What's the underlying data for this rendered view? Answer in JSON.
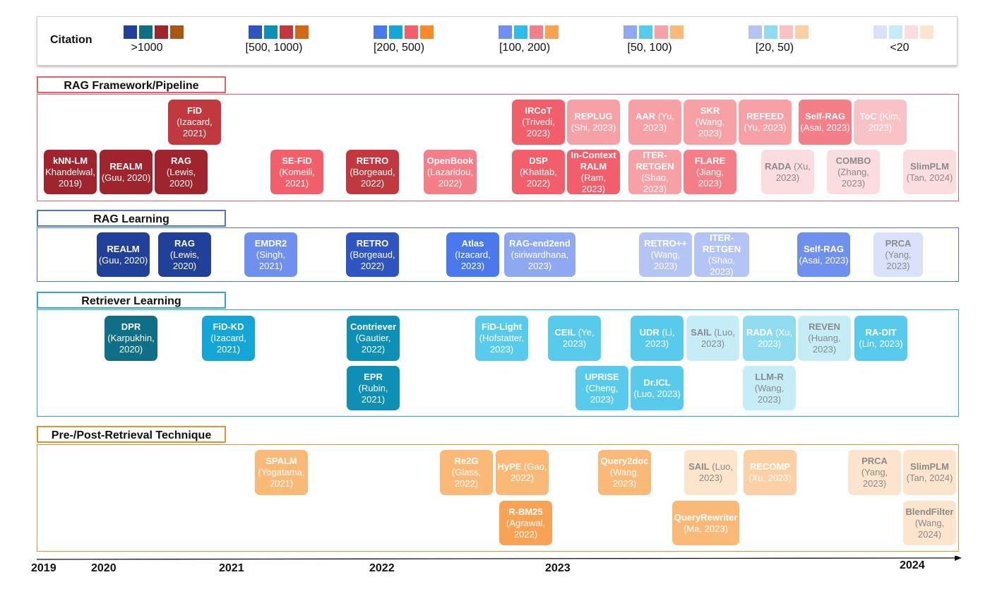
{
  "legend": {
    "title": "Citation",
    "groups": [
      {
        "label": ">1000",
        "colors": [
          "#21409a",
          "#0e6f86",
          "#a0242d",
          "#a85812"
        ]
      },
      {
        "label": "[500, 1000)",
        "colors": [
          "#2e55c1",
          "#0e8fb5",
          "#c2383f",
          "#d06a16"
        ]
      },
      {
        "label": "[200, 500)",
        "colors": [
          "#4a78ed",
          "#13a6d6",
          "#f25e6a",
          "#f98a28"
        ]
      },
      {
        "label": "[100, 200)",
        "colors": [
          "#6f90ef",
          "#2fbce6",
          "#f47f88",
          "#f9a254"
        ]
      },
      {
        "label": "[50, 100)",
        "colors": [
          "#8ea8f2",
          "#58cbec",
          "#f7a0a6",
          "#fbb978"
        ]
      },
      {
        "label": "[20, 50)",
        "colors": [
          "#b3c4f5",
          "#8fdcf1",
          "#f9c2c6",
          "#fcd0a5"
        ]
      },
      {
        "label": "<20",
        "colors": [
          "#d9e2fa",
          "#c5ecf7",
          "#fbdcdf",
          "#fde5cd"
        ]
      }
    ]
  },
  "sections": [
    {
      "title": "RAG Framework/Pipeline",
      "color": "#e8606a",
      "cards": [
        {
          "name": "FiD",
          "rest": "(Izacard, 2021)",
          "tier": 1
        },
        {
          "name": "kNN-LM",
          "rest": "Khandelwal, 2019)",
          "tier": 0
        },
        {
          "name": "REALM",
          "rest": "(Guu, 2020)",
          "tier": 0
        },
        {
          "name": "RAG",
          "rest": "(Lewis, 2020)",
          "tier": 0
        },
        {
          "name": "SE-FiD",
          "rest": "(Komeili, 2021)",
          "tier": 2
        },
        {
          "name": "RETRO",
          "rest": "(Borgeaud, 2022)",
          "tier": 1
        },
        {
          "name": "OpenBook",
          "rest": "(Lazaridou, 2022)",
          "tier": 3
        },
        {
          "name": "IRCoT",
          "rest": "(Trivedi, 2023)",
          "tier": 2
        },
        {
          "name": "REPLUG",
          "rest": "(Shi, 2023)",
          "tier": 4
        },
        {
          "name": "DSP",
          "rest": "(Khattab, 2022)",
          "tier": 2
        },
        {
          "name": "In-Context RALM",
          "rest": "(Ram, 2023)",
          "tier": 2
        },
        {
          "name": "AAR",
          "rest": "(Yu, 2023)",
          "tier": 4
        },
        {
          "name": "SKR",
          "rest": "(Wang, 2023)",
          "tier": 4
        },
        {
          "name": "REFEED",
          "rest": "(Yu, 2023)",
          "tier": 4
        },
        {
          "name": "Self-RAG",
          "rest": "(Asai, 2023)",
          "tier": 3
        },
        {
          "name": "ToC",
          "rest": "(Kim, 2023)",
          "tier": 5
        },
        {
          "name": "ITER-RETGEN",
          "rest": "(Shao, 2023)",
          "tier": 4
        },
        {
          "name": "FLARE",
          "rest": "(Jiang, 2023)",
          "tier": 3
        },
        {
          "name": "RADA",
          "rest": "(Xu, 2023)",
          "tier": 6
        },
        {
          "name": "COMBO",
          "rest": "(Zhang, 2023)",
          "tier": 6
        },
        {
          "name": "SlimPLM",
          "rest": "(Tan, 2024)",
          "tier": 6
        }
      ]
    },
    {
      "title": "RAG Learning",
      "color": "#4a76d4",
      "cards": [
        {
          "name": "REALM",
          "rest": "(Guu, 2020)",
          "tier": 0
        },
        {
          "name": "RAG",
          "rest": "(Lewis, 2020)",
          "tier": 0
        },
        {
          "name": "EMDR2",
          "rest": "(Singh, 2021)",
          "tier": 3
        },
        {
          "name": "RETRO",
          "rest": "(Borgeaud, 2022)",
          "tier": 1
        },
        {
          "name": "Atlas",
          "rest": "(Izacard, 2023)",
          "tier": 2
        },
        {
          "name": "RAG-end2end",
          "rest": "(siriwardhana, 2023)",
          "tier": 4
        },
        {
          "name": "RETRO++",
          "rest": "(Wang, 2023)",
          "tier": 5
        },
        {
          "name": "ITER-RETGEN",
          "rest": "(Shao, 2023)",
          "tier": 5
        },
        {
          "name": "Self-RAG",
          "rest": "(Asai, 2023)",
          "tier": 3
        },
        {
          "name": "PRCA",
          "rest": "(Yang, 2023)",
          "tier": 6
        }
      ]
    },
    {
      "title": "Retriever Learning",
      "color": "#2ba8d9",
      "cards": [
        {
          "name": "DPR",
          "rest": "(Karpukhin, 2020)",
          "tier": 0
        },
        {
          "name": "FiD-KD",
          "rest": "(Izacard, 2021)",
          "tier": 2
        },
        {
          "name": "Contriever",
          "rest": "(Gautier, 2022)",
          "tier": 1
        },
        {
          "name": "EPR",
          "rest": "(Rubin, 2021)",
          "tier": 1
        },
        {
          "name": "FiD-Light",
          "rest": "(Hofstatter, 2023)",
          "tier": 4
        },
        {
          "name": "CEIL",
          "rest": "(Ye, 2023)",
          "tier": 4
        },
        {
          "name": "UPRISE",
          "rest": "(Cheng, 2023)",
          "tier": 4
        },
        {
          "name": "UDR",
          "rest": "(Li, 2023)",
          "tier": 4
        },
        {
          "name": "Dr.ICL",
          "rest": "(Luo, 2023)",
          "tier": 4
        },
        {
          "name": "SAIL",
          "rest": "(Luo, 2023)",
          "tier": 6
        },
        {
          "name": "RADA",
          "rest": "(Xu, 2023)",
          "tier": 5
        },
        {
          "name": "LLM-R",
          "rest": "(Wang, 2023)",
          "tier": 6
        },
        {
          "name": "REVEN",
          "rest": "(Huang, 2023)",
          "tier": 6
        },
        {
          "name": "RA-DIT",
          "rest": "(Lin, 2023)",
          "tier": 4
        }
      ]
    },
    {
      "title": "Pre-/Post-Retrieval Technique",
      "color": "#e8902e",
      "cards": [
        {
          "name": "SPALM",
          "rest": "(Yogatama, 2021)",
          "tier": 4
        },
        {
          "name": "Re2G",
          "rest": "(Glass, 2022)",
          "tier": 4
        },
        {
          "name": "HyPE",
          "rest": "(Gao, 2022)",
          "tier": 4
        },
        {
          "name": "R-BM25",
          "rest": "(Agrawal, 2022)",
          "tier": 3
        },
        {
          "name": "Query2doc",
          "rest": "(Wang, 2023)",
          "tier": 4
        },
        {
          "name": "SAIL",
          "rest": "(Luo, 2023)",
          "tier": 6
        },
        {
          "name": "QueryRewriter",
          "rest": "(Ma, 2023)",
          "tier": 4
        },
        {
          "name": "RECOMP",
          "rest": "(Xu, 2023)",
          "tier": 5
        },
        {
          "name": "PRCA",
          "rest": "(Yang, 2023)",
          "tier": 6
        },
        {
          "name": "SlimPLM",
          "rest": "(Tan, 2024)",
          "tier": 6
        },
        {
          "name": "BlendFilter",
          "rest": "(Wang, 2024)",
          "tier": 6
        }
      ]
    }
  ],
  "timeline": {
    "years": [
      "2019",
      "2020",
      "2021",
      "2022",
      "2023",
      "2024"
    ]
  }
}
